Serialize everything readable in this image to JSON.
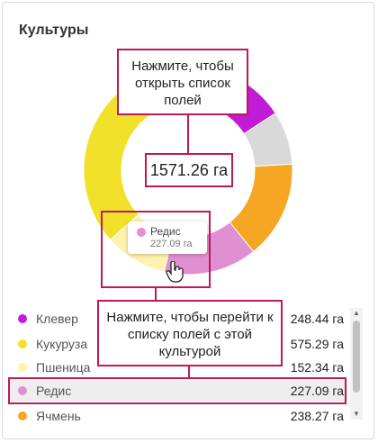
{
  "title": "Культуры",
  "callout_top": "Нажмите, чтобы открыть список полей",
  "total": "1571.26 га",
  "tooltip": {
    "name": "Редис",
    "value": "227.09 га",
    "color": "#e08fd0"
  },
  "callout_bottom": "Нажмите, чтобы перейти к списку полей с этой культурой",
  "highlight_color": "#c2185b",
  "crops": [
    {
      "name": "Клевер",
      "area": "248.44 га",
      "value": 248.44,
      "color": "#c21bd6"
    },
    {
      "name": "Кукуруза",
      "area": "575.29 га",
      "value": 575.29,
      "color": "#f2e12a"
    },
    {
      "name": "Пшеница",
      "area": "152.34 га",
      "value": 152.34,
      "color": "#fff2ad"
    },
    {
      "name": "Редис",
      "area": "227.09 га",
      "value": 227.09,
      "color": "#e08fd0"
    },
    {
      "name": "Ячмень",
      "area": "238.27 га",
      "value": 238.27,
      "color": "#f5a623"
    }
  ],
  "other": {
    "value": 129.83,
    "color": "#d9d9d9"
  },
  "scroll": {
    "up_icon": "▲",
    "down_icon": "▼"
  }
}
